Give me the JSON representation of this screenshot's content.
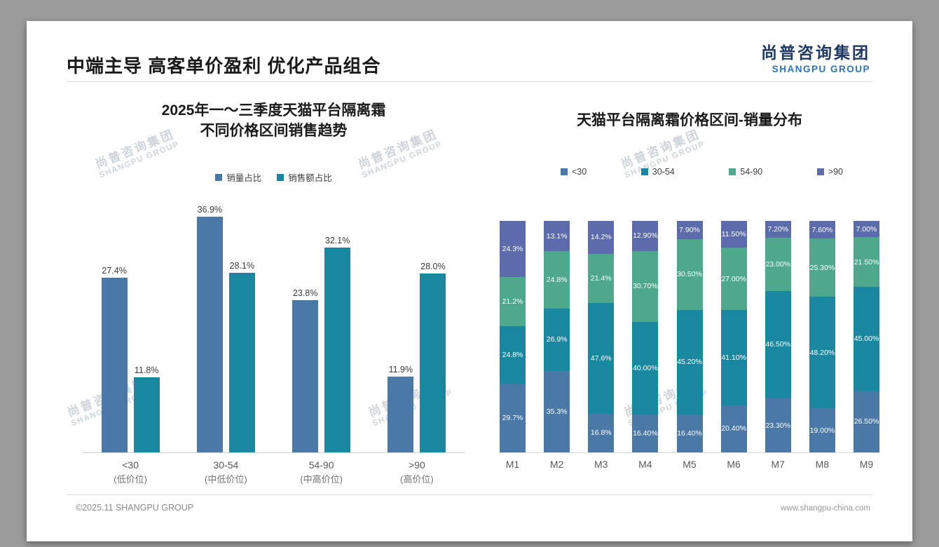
{
  "page": {
    "slide_title": "中端主导 高客单价盈利 优化产品组合",
    "logo": {
      "cn": "尚普咨询集团",
      "en": "SHANGPU GROUP"
    },
    "watermark": {
      "cn": "尚普咨询集团",
      "en": "SHANGPU GROUP"
    },
    "footer": {
      "left": "©2025.11 SHANGPU GROUP",
      "right": "www.shangpu-china.com"
    }
  },
  "colors": {
    "blue": "#4a79a8",
    "teal": "#1a87a0",
    "green": "#4ea88b",
    "purple": "#5c6bac"
  },
  "chart_data": [
    {
      "type": "bar",
      "title_lines": [
        "2025年一～三季度天猫平台隔离霜",
        "不同价格区间销售趋势"
      ],
      "categories": [
        "<30",
        "30-54",
        "54-90",
        ">90"
      ],
      "category_sublabels": [
        "(低价位)",
        "(中低价位)",
        "(中高价位)",
        "(高价位)"
      ],
      "series": [
        {
          "name": "销量占比",
          "color_key": "blue",
          "values": [
            27.4,
            36.9,
            23.8,
            11.9
          ],
          "labels": [
            "27.4%",
            "36.9%",
            "23.8%",
            "11.9%"
          ]
        },
        {
          "name": "销售额占比",
          "color_key": "teal",
          "values": [
            11.8,
            28.1,
            32.1,
            28.0
          ],
          "labels": [
            "11.8%",
            "28.1%",
            "32.1%",
            "28.0%"
          ]
        }
      ],
      "ylim": [
        0,
        40
      ],
      "grid": false,
      "legend_position": "top"
    },
    {
      "type": "bar",
      "subtype": "stacked-100",
      "title": "天猫平台隔离霜价格区间-销量分布",
      "categories": [
        "M1",
        "M2",
        "M3",
        "M4",
        "M5",
        "M6",
        "M7",
        "M8",
        "M9"
      ],
      "series": [
        {
          "name": "<30",
          "color_key": "blue",
          "values": [
            29.7,
            35.3,
            16.8,
            16.4,
            16.4,
            20.4,
            23.3,
            19.0,
            26.5
          ],
          "labels": [
            "29.7%",
            "35.3%",
            "16.8%",
            "16.40%",
            "16.40%",
            "20.40%",
            "23.30%",
            "19.00%",
            "26.50%"
          ]
        },
        {
          "name": "30-54",
          "color_key": "teal",
          "values": [
            24.8,
            26.9,
            47.6,
            40.0,
            45.2,
            41.1,
            46.5,
            48.2,
            45.0
          ],
          "labels": [
            "24.8%",
            "26.9%",
            "47.6%",
            "40.00%",
            "45.20%",
            "41.10%",
            "46.50%",
            "48.20%",
            "45.00%"
          ]
        },
        {
          "name": "54-90",
          "color_key": "green",
          "values": [
            21.2,
            24.8,
            21.4,
            30.7,
            30.5,
            27.0,
            23.0,
            25.3,
            21.5
          ],
          "labels": [
            "21.2%",
            "24.8%",
            "21.4%",
            "30.70%",
            "30.50%",
            "27.00%",
            "23.00%",
            "25.30%",
            "21.50%"
          ]
        },
        {
          "name": ">90",
          "color_key": "purple",
          "values": [
            24.3,
            13.1,
            14.2,
            12.9,
            7.9,
            11.5,
            7.2,
            7.6,
            7.0
          ],
          "labels": [
            "24.3%",
            "13.1%",
            "14.2%",
            "12.90%",
            "7.90%",
            "11.50%",
            "7.20%",
            "7.60%",
            "7.00%"
          ]
        }
      ],
      "ylim": [
        0,
        100
      ],
      "grid": false,
      "legend_position": "top"
    }
  ]
}
